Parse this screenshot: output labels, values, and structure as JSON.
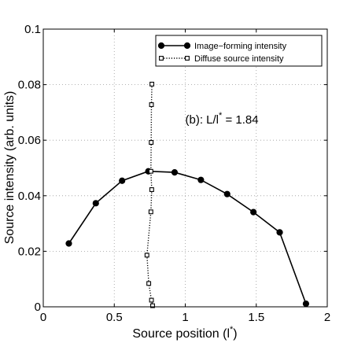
{
  "chart_data": {
    "type": "line",
    "xlabel": "Source position (l",
    "xlabel_sup": "*",
    "xlabel_close": ")",
    "ylabel": "Source intensity (arb. units)",
    "xlim": [
      0,
      2
    ],
    "ylim": [
      0,
      0.1
    ],
    "x_ticks": [
      0,
      0.5,
      1,
      1.5,
      2
    ],
    "x_tick_labels": [
      "0",
      "0.5",
      "1",
      "1.5",
      "2"
    ],
    "y_ticks": [
      0,
      0.02,
      0.04,
      0.06,
      0.08,
      0.1
    ],
    "y_tick_labels": [
      "0",
      "0.02",
      "0.04",
      "0.06",
      "0.08",
      "0.1"
    ],
    "grid": true,
    "legend_position": "top-right",
    "annotation": {
      "prefix": "(b): L/l",
      "sup": "*",
      "suffix": " = 1.84",
      "x": 1.0,
      "y": 0.066
    },
    "series": [
      {
        "name": "Image−forming intensity",
        "style": "solid",
        "marker": "filled-circle",
        "color": "#000000",
        "x": [
          0.18,
          0.37,
          0.555,
          0.74,
          0.925,
          1.11,
          1.295,
          1.48,
          1.665,
          1.85
        ],
        "y": [
          0.0228,
          0.0373,
          0.0454,
          0.0488,
          0.0484,
          0.0457,
          0.0406,
          0.0341,
          0.0268,
          0.0011
        ]
      },
      {
        "name": "Diffuse source intensity",
        "style": "dotted",
        "marker": "hollow-square",
        "color": "#000000",
        "x": [
          0.765,
          0.762,
          0.76,
          0.758,
          0.764,
          0.758,
          0.73,
          0.743,
          0.762,
          0.77
        ],
        "y": [
          0.0802,
          0.0728,
          0.0592,
          0.0488,
          0.0422,
          0.0342,
          0.0186,
          0.0084,
          0.0024,
          0.0004
        ]
      }
    ]
  }
}
